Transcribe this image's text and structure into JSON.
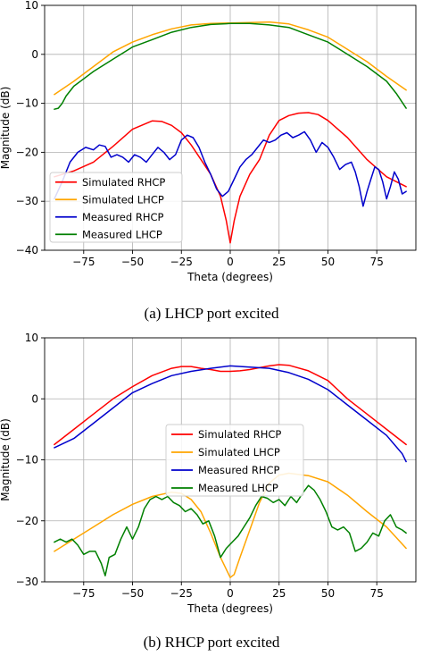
{
  "captions": [
    "(a) LHCP port excited",
    "(b) RHCP port excited"
  ],
  "chart_data": [
    {
      "type": "line",
      "title": "",
      "xlabel": "Theta (degrees)",
      "ylabel": "Magnitude (dB)",
      "xlim": [
        -95,
        95
      ],
      "ylim": [
        -40,
        10
      ],
      "xticks": [
        -75,
        -50,
        -25,
        0,
        25,
        50,
        75
      ],
      "yticks": [
        -40,
        -30,
        -20,
        -10,
        0,
        10
      ],
      "grid": true,
      "legend_position": "lower-left",
      "series": [
        {
          "name": "Simulated RHCP",
          "color": "#ff0000",
          "x": [
            -90,
            -80,
            -70,
            -60,
            -50,
            -40,
            -35,
            -30,
            -25,
            -20,
            -15,
            -10,
            -5,
            -2,
            0,
            2,
            5,
            10,
            15,
            20,
            25,
            30,
            35,
            40,
            45,
            50,
            60,
            70,
            80,
            90
          ],
          "y": [
            -25,
            -23.8,
            -22,
            -18.8,
            -15.3,
            -13.6,
            -13.7,
            -14.5,
            -16,
            -18.5,
            -21.5,
            -24.5,
            -29,
            -34,
            -38.5,
            -34,
            -29,
            -24.5,
            -21.5,
            -16.5,
            -13.5,
            -12.5,
            -12,
            -11.9,
            -12.3,
            -13.5,
            -17,
            -21.5,
            -25,
            -27
          ]
        },
        {
          "name": "Simulated LHCP",
          "color": "#ffa500",
          "x": [
            -90,
            -80,
            -70,
            -60,
            -50,
            -40,
            -30,
            -20,
            -10,
            0,
            10,
            20,
            30,
            40,
            50,
            60,
            70,
            80,
            90
          ],
          "y": [
            -8.2,
            -5.5,
            -2.5,
            0.5,
            2.5,
            4,
            5.2,
            6,
            6.3,
            6.4,
            6.5,
            6.6,
            6.2,
            5,
            3.5,
            1,
            -1.5,
            -4.5,
            -7.3
          ]
        },
        {
          "name": "Measured RHCP",
          "color": "#0000cc",
          "x": [
            -90,
            -86,
            -82,
            -78,
            -74,
            -70,
            -67,
            -64,
            -61,
            -58,
            -55,
            -52,
            -49,
            -46,
            -43,
            -40,
            -37,
            -34,
            -31,
            -28,
            -25,
            -22,
            -19,
            -16,
            -13,
            -10,
            -7,
            -4,
            -1,
            2,
            5,
            8,
            11,
            14,
            17,
            20,
            23,
            26,
            29,
            32,
            35,
            38,
            41,
            44,
            47,
            50,
            53,
            56,
            59,
            62,
            64,
            66,
            68,
            70,
            72,
            74,
            76,
            78,
            80,
            82,
            84,
            86,
            88,
            90
          ],
          "y": [
            -29.5,
            -26,
            -22,
            -20,
            -19,
            -19.5,
            -18.5,
            -18.8,
            -21,
            -20.5,
            -21,
            -22,
            -20.5,
            -21,
            -22,
            -20.5,
            -19,
            -20,
            -21.5,
            -20.5,
            -17.5,
            -16.5,
            -17,
            -19,
            -22,
            -24.5,
            -27.5,
            -29,
            -28,
            -25.5,
            -23,
            -21.5,
            -20.5,
            -19,
            -17.5,
            -18,
            -17.5,
            -16.5,
            -16,
            -17,
            -16.5,
            -15.8,
            -17.5,
            -20,
            -18,
            -19,
            -21,
            -23.5,
            -22.5,
            -22,
            -24,
            -27,
            -31,
            -28,
            -25.5,
            -23,
            -23.5,
            -26,
            -29.5,
            -27,
            -24,
            -25.5,
            -28.5,
            -28
          ]
        },
        {
          "name": "Measured LHCP",
          "color": "#008000",
          "x": [
            -90,
            -88,
            -86,
            -84,
            -80,
            -75,
            -70,
            -60,
            -50,
            -40,
            -30,
            -20,
            -10,
            0,
            10,
            20,
            30,
            40,
            50,
            60,
            70,
            80,
            85,
            90
          ],
          "y": [
            -11.2,
            -11,
            -10,
            -8.5,
            -6.5,
            -5,
            -3.5,
            -1,
            1.5,
            3,
            4.5,
            5.5,
            6.1,
            6.3,
            6.3,
            6,
            5.5,
            4,
            2.5,
            0,
            -2.5,
            -5.5,
            -8,
            -11
          ]
        }
      ]
    },
    {
      "type": "line",
      "title": "",
      "xlabel": "Theta (degrees)",
      "ylabel": "Magnitude (dB)",
      "xlim": [
        -95,
        95
      ],
      "ylim": [
        -30,
        10
      ],
      "xticks": [
        -75,
        -50,
        -25,
        0,
        25,
        50,
        75
      ],
      "yticks": [
        -30,
        -20,
        -10,
        0,
        10
      ],
      "grid": true,
      "legend_position": "center",
      "series": [
        {
          "name": "Simulated RHCP",
          "color": "#ff0000",
          "x": [
            -90,
            -80,
            -70,
            -60,
            -50,
            -40,
            -30,
            -25,
            -20,
            -15,
            -10,
            -5,
            0,
            5,
            10,
            15,
            20,
            25,
            30,
            40,
            50,
            60,
            70,
            80,
            90
          ],
          "y": [
            -7.5,
            -5,
            -2.5,
            0,
            2,
            3.8,
            5,
            5.3,
            5.3,
            5,
            4.8,
            4.5,
            4.5,
            4.6,
            4.8,
            5.1,
            5.4,
            5.6,
            5.5,
            4.6,
            3,
            0,
            -2.5,
            -5,
            -7.5
          ]
        },
        {
          "name": "Simulated LHCP",
          "color": "#ffa500",
          "x": [
            -90,
            -80,
            -70,
            -60,
            -50,
            -40,
            -30,
            -25,
            -20,
            -15,
            -10,
            -5,
            0,
            2,
            5,
            10,
            15,
            20,
            25,
            30,
            40,
            50,
            60,
            70,
            80,
            90
          ],
          "y": [
            -25,
            -23,
            -21,
            -19,
            -17.3,
            -16,
            -15.3,
            -15.5,
            -16.5,
            -18.5,
            -22,
            -26,
            -29.3,
            -28.8,
            -26,
            -21.5,
            -17,
            -13.8,
            -12.5,
            -12.2,
            -12.6,
            -13.6,
            -15.8,
            -18.5,
            -21,
            -24.5
          ]
        },
        {
          "name": "Measured RHCP",
          "color": "#0000cc",
          "x": [
            -90,
            -80,
            -70,
            -60,
            -50,
            -40,
            -30,
            -20,
            -10,
            0,
            10,
            20,
            30,
            40,
            50,
            60,
            70,
            80,
            84,
            88,
            90
          ],
          "y": [
            -8,
            -6.5,
            -4,
            -1.5,
            1,
            2.5,
            3.8,
            4.5,
            5,
            5.4,
            5.2,
            5,
            4.3,
            3.2,
            1.5,
            -1,
            -3.5,
            -6,
            -7.5,
            -9,
            -10.3
          ]
        },
        {
          "name": "Measured LHCP",
          "color": "#008000",
          "x": [
            -90,
            -87,
            -84,
            -81,
            -78,
            -75,
            -72,
            -69,
            -66,
            -64,
            -62,
            -59,
            -56,
            -53,
            -50,
            -47,
            -44,
            -41,
            -38,
            -35,
            -32,
            -29,
            -26,
            -23,
            -20,
            -17,
            -14,
            -11,
            -8,
            -5,
            -2,
            1,
            4,
            7,
            10,
            13,
            16,
            19,
            22,
            25,
            28,
            31,
            34,
            37,
            40,
            43,
            46,
            49,
            52,
            55,
            58,
            61,
            64,
            67,
            70,
            73,
            76,
            79,
            82,
            85,
            88,
            90
          ],
          "y": [
            -23.5,
            -23,
            -23.5,
            -23,
            -24,
            -25.5,
            -25,
            -25,
            -27,
            -29,
            -26,
            -25.5,
            -23,
            -21,
            -23,
            -21,
            -18,
            -16.5,
            -16,
            -16.5,
            -16,
            -17,
            -17.5,
            -18.5,
            -18,
            -19,
            -20.5,
            -20,
            -22.5,
            -26,
            -24.5,
            -23.5,
            -22.5,
            -21,
            -19.5,
            -17.5,
            -16,
            -16.3,
            -17,
            -16.5,
            -17.5,
            -16,
            -17,
            -15.5,
            -14.2,
            -15,
            -16.5,
            -18.5,
            -21,
            -21.5,
            -21,
            -22,
            -25,
            -24.5,
            -23.5,
            -22,
            -22.5,
            -20,
            -19,
            -21,
            -21.5,
            -22
          ]
        }
      ]
    }
  ]
}
